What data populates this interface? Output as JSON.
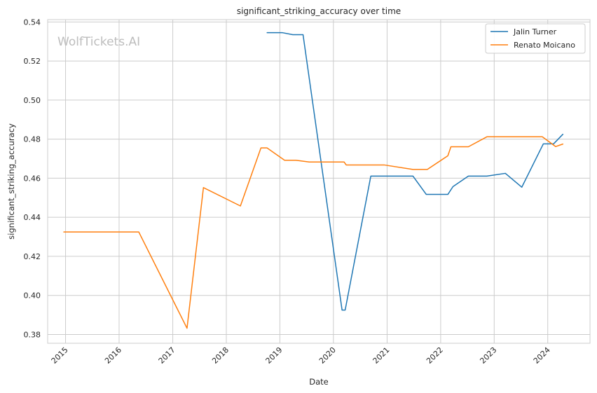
{
  "chart_data": {
    "type": "line",
    "title": "significant_striking_accuracy over time",
    "xlabel": "Date",
    "ylabel": "significant_striking_accuracy",
    "watermark": "WolfTickets.AI",
    "grid": true,
    "legend_position": "top-right",
    "x_tick_labels": [
      "2015",
      "2016",
      "2017",
      "2018",
      "2019",
      "2020",
      "2021",
      "2022",
      "2023",
      "2024"
    ],
    "y_tick_labels": [
      "0.38",
      "0.40",
      "0.42",
      "0.44",
      "0.46",
      "0.48",
      "0.50",
      "0.52",
      "0.54"
    ],
    "y_ticks": [
      0.38,
      0.4,
      0.42,
      0.44,
      0.46,
      0.48,
      0.5,
      0.52,
      0.54
    ],
    "xlim": [
      "2014-09-01",
      "2024-10-15"
    ],
    "ylim": [
      0.3755,
      0.5412
    ],
    "series": [
      {
        "name": "Jalin Turner",
        "color": "#1f77b4",
        "points": [
          [
            "2018-10-06",
            0.5345
          ],
          [
            "2019-01-19",
            0.5345
          ],
          [
            "2019-03-30",
            0.5335
          ],
          [
            "2019-06-08",
            0.5335
          ],
          [
            "2020-02-29",
            0.3925
          ],
          [
            "2020-03-21",
            0.3925
          ],
          [
            "2020-09-12",
            0.4611
          ],
          [
            "2021-06-26",
            0.4611
          ],
          [
            "2021-09-25",
            0.4517
          ],
          [
            "2022-02-19",
            0.4517
          ],
          [
            "2022-03-26",
            0.4557
          ],
          [
            "2022-07-09",
            0.4611
          ],
          [
            "2022-11-12",
            0.4611
          ],
          [
            "2023-03-18",
            0.4625
          ],
          [
            "2023-07-08",
            0.4554
          ],
          [
            "2023-12-02",
            0.4776
          ],
          [
            "2024-02-10",
            0.4776
          ],
          [
            "2024-04-13",
            0.4825
          ]
        ]
      },
      {
        "name": "Renato Moicano",
        "color": "#ff7f0e",
        "points": [
          [
            "2014-12-20",
            0.4325
          ],
          [
            "2016-05-14",
            0.4325
          ],
          [
            "2017-04-08",
            0.3832
          ],
          [
            "2017-07-29",
            0.4552
          ],
          [
            "2018-04-07",
            0.4458
          ],
          [
            "2018-08-25",
            0.4755
          ],
          [
            "2018-10-06",
            0.4755
          ],
          [
            "2019-02-02",
            0.4692
          ],
          [
            "2019-04-20",
            0.4692
          ],
          [
            "2019-07-20",
            0.4683
          ],
          [
            "2020-03-14",
            0.4683
          ],
          [
            "2020-03-28",
            0.4668
          ],
          [
            "2020-12-12",
            0.4668
          ],
          [
            "2021-06-26",
            0.4645
          ],
          [
            "2021-10-02",
            0.4645
          ],
          [
            "2022-02-19",
            0.4715
          ],
          [
            "2022-03-12",
            0.4761
          ],
          [
            "2022-07-09",
            0.4761
          ],
          [
            "2022-11-12",
            0.4812
          ],
          [
            "2023-11-25",
            0.4812
          ],
          [
            "2024-02-24",
            0.4762
          ],
          [
            "2024-04-13",
            0.4775
          ]
        ]
      }
    ]
  }
}
